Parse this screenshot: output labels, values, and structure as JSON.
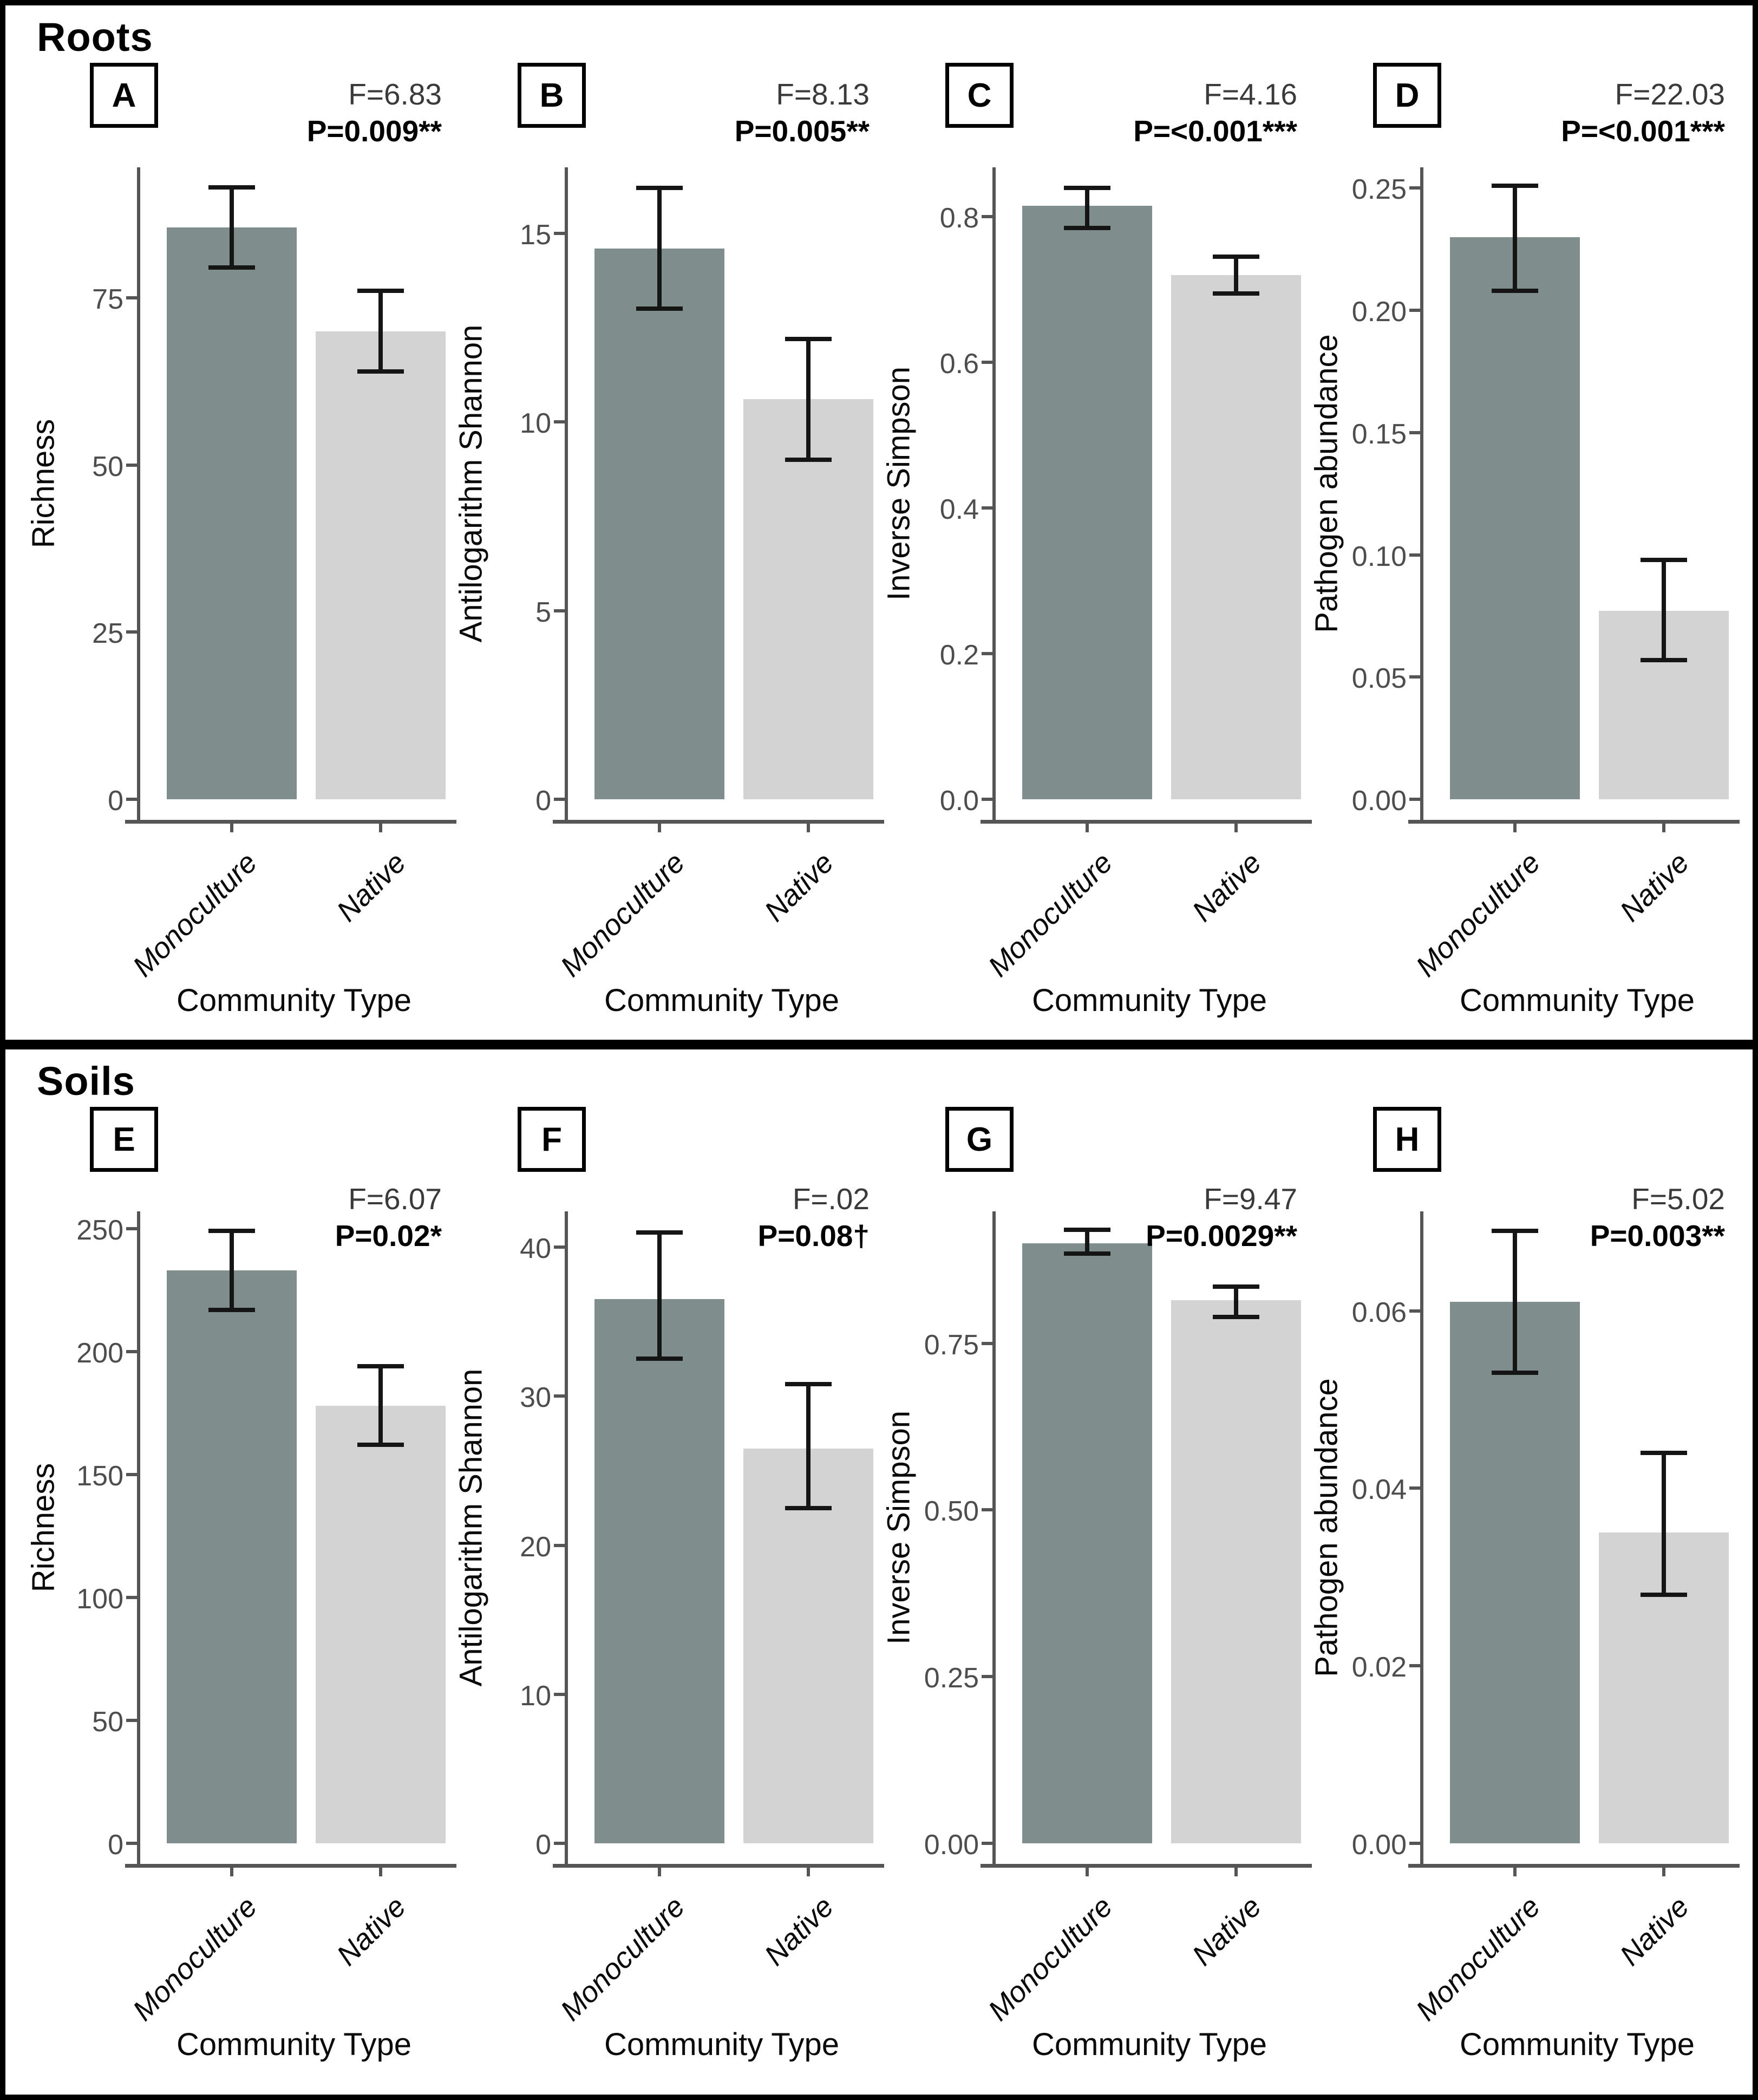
{
  "figure": {
    "sections": [
      {
        "title": "Roots"
      },
      {
        "title": "Soils"
      }
    ],
    "bar_colors": [
      "#7f8e8d",
      "#d3d3d3"
    ],
    "error_bar_color": "#151515",
    "categories": [
      "Monoculture",
      "Native"
    ]
  },
  "chart_data": [
    {
      "type": "bar",
      "panel": "A",
      "section": "Roots",
      "ylabel": "Richness",
      "xlabel": "Community Type",
      "categories": [
        "Monoculture",
        "Native"
      ],
      "values": [
        85.5,
        70
      ],
      "error_low": [
        79.5,
        64
      ],
      "error_high": [
        91.5,
        76
      ],
      "f_label": "F=6.83",
      "p_label": "P=0.009**",
      "ylim": [
        0,
        94.5
      ],
      "ytick_values": [
        0,
        25,
        50,
        75
      ],
      "ytick_labels": [
        "0",
        "25",
        "50",
        "75"
      ],
      "grid": false,
      "legend": "none"
    },
    {
      "type": "bar",
      "panel": "B",
      "section": "Roots",
      "ylabel": "Antilogarithm Shannon",
      "xlabel": "Community Type",
      "categories": [
        "Monoculture",
        "Native"
      ],
      "values": [
        14.6,
        10.6
      ],
      "error_low": [
        13.0,
        9.0
      ],
      "error_high": [
        16.2,
        12.2
      ],
      "f_label": "F=8.13",
      "p_label": "P=0.005**",
      "ylim": [
        0,
        16.75
      ],
      "ytick_values": [
        0,
        5,
        10,
        15
      ],
      "ytick_labels": [
        "0",
        "5",
        "10",
        "15"
      ],
      "grid": false,
      "legend": "none"
    },
    {
      "type": "bar",
      "panel": "C",
      "section": "Roots",
      "ylabel": "Inverse Simpson",
      "xlabel": "Community Type",
      "categories": [
        "Monoculture",
        "Native"
      ],
      "values": [
        0.815,
        0.72
      ],
      "error_low": [
        0.785,
        0.695
      ],
      "error_high": [
        0.84,
        0.745
      ],
      "f_label": "F=4.16",
      "p_label": "P=<0.001***",
      "ylim": [
        0,
        0.868
      ],
      "ytick_values": [
        0.0,
        0.2,
        0.4,
        0.6,
        0.8
      ],
      "ytick_labels": [
        "0.0",
        "0.2",
        "0.4",
        "0.6",
        "0.8"
      ],
      "grid": false,
      "legend": "none"
    },
    {
      "type": "bar",
      "panel": "D",
      "section": "Roots",
      "ylabel": "Pathogen abundance",
      "xlabel": "Community Type",
      "categories": [
        "Monoculture",
        "Native"
      ],
      "values": [
        0.23,
        0.077
      ],
      "error_low": [
        0.208,
        0.057
      ],
      "error_high": [
        0.251,
        0.098
      ],
      "f_label": "F=22.03",
      "p_label": "P=<0.001***",
      "ylim": [
        0,
        0.2585
      ],
      "ytick_values": [
        0.0,
        0.05,
        0.1,
        0.15,
        0.2,
        0.25
      ],
      "ytick_labels": [
        "0.00",
        "0.05",
        "0.10",
        "0.15",
        "0.20",
        "0.25"
      ],
      "grid": false,
      "legend": "none"
    },
    {
      "type": "bar",
      "panel": "E",
      "section": "Soils",
      "ylabel": "Richness",
      "xlabel": "Community Type",
      "categories": [
        "Monoculture",
        "Native"
      ],
      "values": [
        233,
        178
      ],
      "error_low": [
        217,
        162
      ],
      "error_high": [
        249,
        194
      ],
      "f_label": "F=6.07",
      "p_label": "P=0.02*",
      "ylim": [
        0,
        257
      ],
      "ytick_values": [
        0,
        50,
        100,
        150,
        200,
        250
      ],
      "ytick_labels": [
        "0",
        "50",
        "100",
        "150",
        "200",
        "250"
      ],
      "grid": false,
      "legend": "none"
    },
    {
      "type": "bar",
      "panel": "F",
      "section": "Soils",
      "ylabel": "Antilogarithm Shannon",
      "xlabel": "Community Type",
      "categories": [
        "Monoculture",
        "Native"
      ],
      "values": [
        36.5,
        26.5
      ],
      "error_low": [
        32.5,
        22.5
      ],
      "error_high": [
        41.0,
        30.8
      ],
      "f_label": "F=.02",
      "p_label": "P=0.08†",
      "ylim": [
        0,
        42.4
      ],
      "ytick_values": [
        0,
        10,
        20,
        30,
        40
      ],
      "ytick_labels": [
        "0",
        "10",
        "20",
        "30",
        "40"
      ],
      "grid": false,
      "legend": "none"
    },
    {
      "type": "bar",
      "panel": "G",
      "section": "Soils",
      "ylabel": "Inverse Simpson",
      "xlabel": "Community Type",
      "categories": [
        "Monoculture",
        "Native"
      ],
      "values": [
        0.9,
        0.815
      ],
      "error_low": [
        0.885,
        0.79
      ],
      "error_high": [
        0.92,
        0.835
      ],
      "f_label": "F=9.47",
      "p_label": "P=0.0029**",
      "ylim": [
        0,
        0.948
      ],
      "ytick_values": [
        0.0,
        0.25,
        0.5,
        0.75
      ],
      "ytick_labels": [
        "0.00",
        "0.25",
        "0.50",
        "0.75"
      ],
      "grid": false,
      "legend": "none"
    },
    {
      "type": "bar",
      "panel": "H",
      "section": "Soils",
      "ylabel": "Pathogen abundance",
      "xlabel": "Community Type",
      "categories": [
        "Monoculture",
        "Native"
      ],
      "values": [
        0.061,
        0.035
      ],
      "error_low": [
        0.053,
        0.028
      ],
      "error_high": [
        0.069,
        0.044
      ],
      "f_label": "F=5.02",
      "p_label": "P=0.003**",
      "ylim": [
        0,
        0.0712
      ],
      "ytick_values": [
        0.0,
        0.02,
        0.04,
        0.06
      ],
      "ytick_labels": [
        "0.00",
        "0.02",
        "0.04",
        "0.06"
      ],
      "grid": false,
      "legend": "none"
    }
  ]
}
